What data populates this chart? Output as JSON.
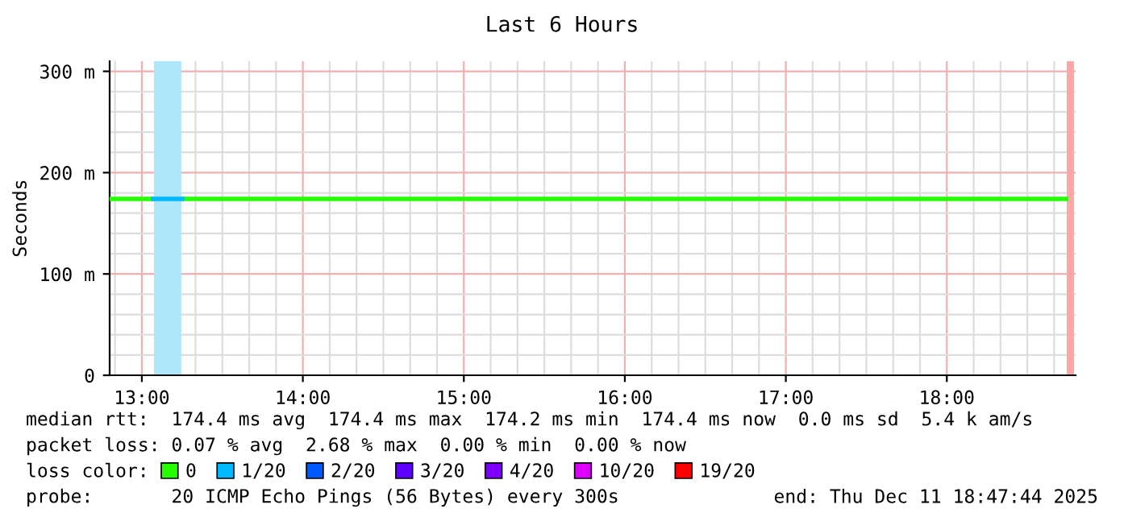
{
  "chart_data": {
    "type": "line",
    "title": "Last 6 Hours",
    "ylabel": "Seconds",
    "xlim": [
      12.8,
      18.8
    ],
    "ylim": [
      0,
      310
    ],
    "xticks": [
      {
        "value": 13,
        "label": "13:00"
      },
      {
        "value": 14,
        "label": "14:00"
      },
      {
        "value": 15,
        "label": "15:00"
      },
      {
        "value": 16,
        "label": "16:00"
      },
      {
        "value": 17,
        "label": "17:00"
      },
      {
        "value": 18,
        "label": "18:00"
      }
    ],
    "yticks": [
      0,
      {
        "value": 100,
        "label": "100 m"
      },
      {
        "value": 200,
        "label": "200 m"
      },
      {
        "value": 300,
        "label": "300 m"
      }
    ],
    "grid": true,
    "legend": "bottom",
    "legend_title": "loss color:",
    "line_style": "solid",
    "marker": "none",
    "series": [
      {
        "name": "0",
        "color": "#26ff00",
        "x": [
          12.8,
          13.07,
          13.08,
          13.25,
          18.74
        ],
        "values": [
          174,
          174,
          null,
          174,
          174
        ]
      },
      {
        "name": "1/20",
        "color": "#00b8ff",
        "x": [
          13.07,
          13.25
        ],
        "values": [
          174,
          174
        ]
      },
      {
        "name": "2/20",
        "color": "#0059ff"
      },
      {
        "name": "3/20",
        "color": "#5e00ff"
      },
      {
        "name": "4/20",
        "color": "#7e00ff"
      },
      {
        "name": "10/20",
        "color": "#dd00ff"
      },
      {
        "name": "19/20",
        "color": "#ff0000"
      }
    ],
    "bands": [
      {
        "axis": "x",
        "from": 13.075,
        "to": 13.245,
        "color": "#aee6fc"
      },
      {
        "axis": "x",
        "from": 18.745,
        "to": 18.79,
        "color": "#ffa6a6"
      }
    ],
    "annotations": [
      "median rtt:  174.4 ms avg  174.4 ms max  174.2 ms min  174.4 ms now  0.0 ms sd  5.4 k am/s",
      "packet loss: 0.07 % avg  2.68 % max  0.00 % min  0.00 % now",
      "probe:       20 ICMP Echo Pings (56 Bytes) every 300s",
      "end: Thu Dec 11 18:47:44 2025"
    ]
  }
}
